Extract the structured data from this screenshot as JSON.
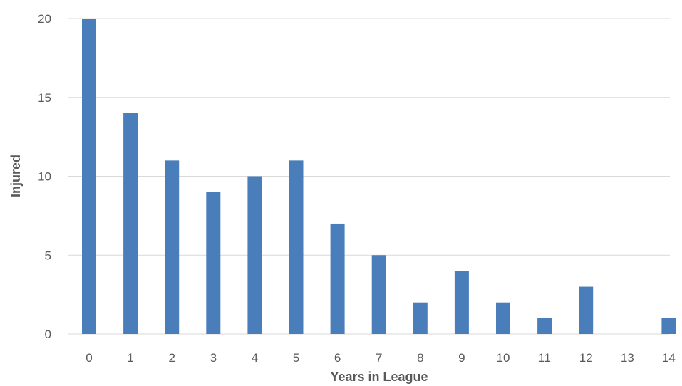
{
  "chart_data": {
    "type": "bar",
    "title": "",
    "xlabel": "Years in League",
    "ylabel": "Injured",
    "categories": [
      "0",
      "1",
      "2",
      "3",
      "4",
      "5",
      "6",
      "7",
      "8",
      "9",
      "10",
      "11",
      "12",
      "13",
      "14"
    ],
    "values": [
      20,
      14,
      11,
      9,
      10,
      11,
      7,
      5,
      2,
      4,
      2,
      1,
      3,
      0,
      1
    ],
    "ylim": [
      0,
      20
    ],
    "yticks": [
      0,
      5,
      10,
      15,
      20
    ],
    "grid": true,
    "legend": "none",
    "bar_color": "#4a7ebb"
  }
}
